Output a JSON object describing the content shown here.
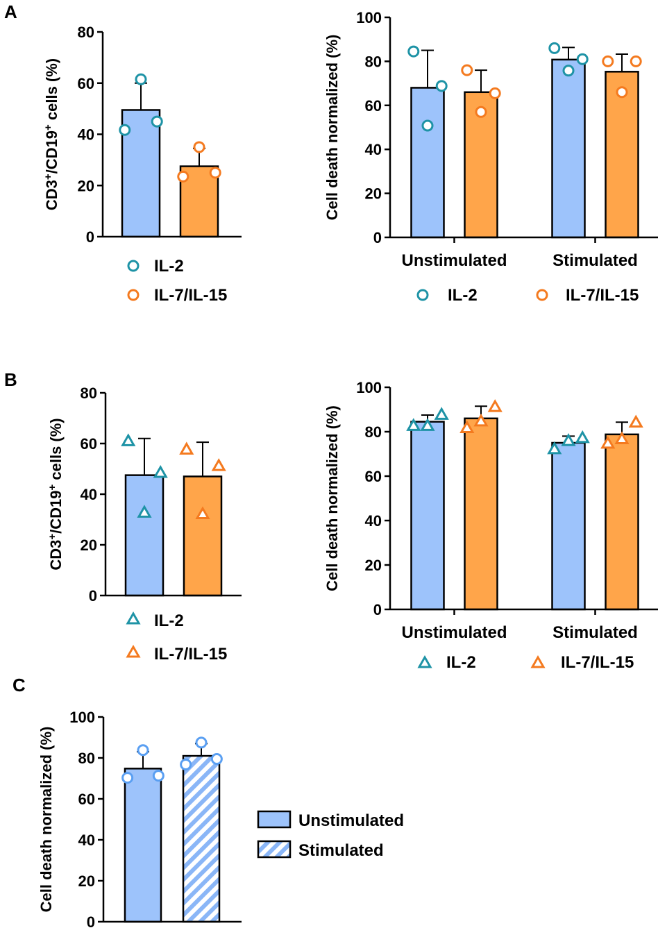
{
  "panel_labels": {
    "a": "A",
    "b": "B",
    "c": "C"
  },
  "legend_main": {
    "il2": "IL-2",
    "il715": "IL-7/IL-15"
  },
  "legend_c": {
    "unstim": "Unstimulated",
    "stim": "Stimulated"
  },
  "colors": {
    "blue_fill": "#9dc3fb",
    "orange_fill": "#ffa54a",
    "teal_marker": "#1e93a6",
    "orange_marker": "#f47a1f",
    "light_blue_marker": "#5a9ff2",
    "hatch_blue": "#8ab6f7"
  },
  "chart_data": [
    {
      "id": "A-left",
      "type": "bar",
      "ylabel_parts": [
        "CD3",
        "+",
        "/CD19",
        "+",
        " cells (%)"
      ],
      "ylim": [
        0,
        80
      ],
      "yticks": [
        0,
        20,
        40,
        60,
        80
      ],
      "categories": [
        "IL-2",
        "IL-7/IL-15"
      ],
      "values": [
        49.5,
        27.5
      ],
      "errors": [
        10.5,
        7
      ],
      "points": [
        [
          41.7,
          45,
          61.5
        ],
        [
          23.5,
          25,
          35
        ]
      ],
      "marker": "circle"
    },
    {
      "id": "A-right",
      "type": "bar",
      "ylabel": "Cell death normalized (%)",
      "ylim": [
        0,
        100
      ],
      "yticks": [
        0,
        20,
        40,
        60,
        80,
        100
      ],
      "groups": [
        "Unstimulated",
        "Stimulated"
      ],
      "series": [
        {
          "name": "IL-2",
          "values": [
            68,
            80.8
          ],
          "errors": [
            17,
            5.5
          ],
          "points": [
            [
              84.5,
              68.8,
              50.8
            ],
            [
              86,
              81,
              75.8
            ]
          ]
        },
        {
          "name": "IL-7/IL-15",
          "values": [
            66,
            75.3
          ],
          "errors": [
            10,
            8
          ],
          "points": [
            [
              76,
              65.5,
              57
            ],
            [
              80,
              80,
              66
            ]
          ]
        }
      ],
      "marker": "circle"
    },
    {
      "id": "B-left",
      "type": "bar",
      "ylabel_parts": [
        "CD3",
        "+",
        "/CD19",
        "+",
        " cells (%)"
      ],
      "ylim": [
        0,
        80
      ],
      "yticks": [
        0,
        20,
        40,
        60,
        80
      ],
      "categories": [
        "IL-2",
        "IL-7/IL-15"
      ],
      "values": [
        47.5,
        47
      ],
      "errors": [
        14.5,
        13.5
      ],
      "points": [
        [
          60.8,
          48.3,
          32.6
        ],
        [
          57.5,
          51,
          32
        ]
      ],
      "marker": "triangle"
    },
    {
      "id": "B-right",
      "type": "bar",
      "ylabel": "Cell death normalized (%)",
      "ylim": [
        0,
        100
      ],
      "yticks": [
        0,
        20,
        40,
        60,
        80,
        100
      ],
      "groups": [
        "Unstimulated",
        "Stimulated"
      ],
      "series": [
        {
          "name": "IL-2",
          "values": [
            84.5,
            75
          ],
          "errors": [
            3,
            3
          ],
          "points": [
            [
              82.5,
              87.5,
              82.5
            ],
            [
              72,
              77,
              75.7
            ]
          ]
        },
        {
          "name": "IL-7/IL-15",
          "values": [
            86,
            78.8
          ],
          "errors": [
            5.5,
            5.5
          ],
          "points": [
            [
              81.5,
              91,
              84.5
            ],
            [
              74.5,
              84,
              76.5
            ]
          ]
        }
      ],
      "marker": "triangle"
    },
    {
      "id": "C",
      "type": "bar",
      "ylabel": "Cell death normalized (%)",
      "ylim": [
        0,
        100
      ],
      "yticks": [
        0,
        20,
        40,
        60,
        80,
        100
      ],
      "categories": [
        "Unstimulated",
        "Stimulated"
      ],
      "values": [
        74.8,
        81
      ],
      "errors": [
        8.2,
        6
      ],
      "points": [
        [
          70.3,
          71.3,
          83.8
        ],
        [
          76.8,
          79.5,
          87.5
        ]
      ],
      "marker": "circle"
    }
  ]
}
